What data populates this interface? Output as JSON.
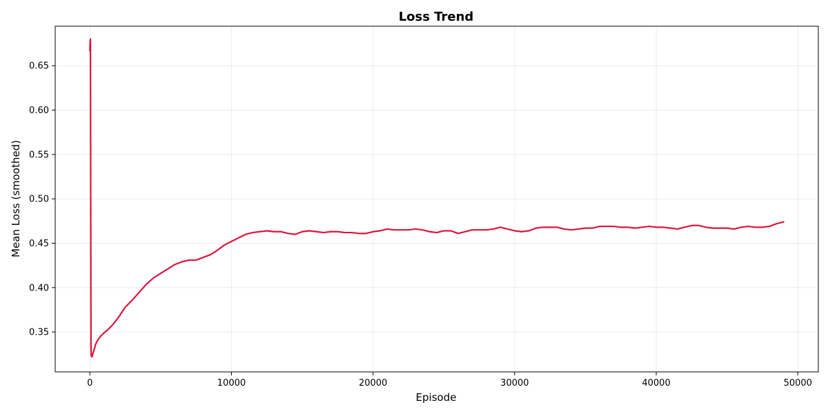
{
  "chart_data": {
    "type": "line",
    "title": "Loss Trend",
    "xlabel": "Episode",
    "ylabel": "Mean Loss (smoothed)",
    "xlim": [
      -2450,
      51450
    ],
    "ylim": [
      0.305,
      0.6945
    ],
    "xticks": [
      0,
      10000,
      20000,
      30000,
      40000,
      50000
    ],
    "yticks": [
      0.35,
      0.4,
      0.45,
      0.5,
      0.55,
      0.6,
      0.65
    ],
    "grid": true,
    "legend": "none",
    "series": [
      {
        "color": "#dc143c",
        "x": [
          0,
          20,
          40,
          60,
          80,
          100,
          150,
          200,
          300,
          400,
          600,
          800,
          1000,
          1300,
          1600,
          2000,
          2500,
          3000,
          3500,
          4000,
          4500,
          5000,
          5500,
          6000,
          6500,
          7000,
          7500,
          8000,
          8500,
          9000,
          9500,
          10000,
          10500,
          11000,
          11500,
          12000,
          12500,
          13000,
          13500,
          14000,
          14500,
          15000,
          15500,
          16000,
          16500,
          17000,
          17500,
          18000,
          18500,
          19000,
          19500,
          20000,
          20500,
          21000,
          21500,
          22000,
          22500,
          23000,
          23500,
          24000,
          24500,
          25000,
          25500,
          26000,
          26500,
          27000,
          27500,
          28000,
          28500,
          29000,
          29500,
          30000,
          30500,
          31000,
          31500,
          32000,
          32500,
          33000,
          33500,
          34000,
          34500,
          35000,
          35500,
          36000,
          36500,
          37000,
          37500,
          38000,
          38500,
          39000,
          39500,
          40000,
          40500,
          41000,
          41500,
          42000,
          42500,
          43000,
          43500,
          44000,
          44500,
          45000,
          45500,
          46000,
          46500,
          47000,
          47500,
          48000,
          48500,
          49000
        ],
        "values": [
          0.667,
          0.678,
          0.68,
          0.5,
          0.33,
          0.323,
          0.322,
          0.325,
          0.33,
          0.336,
          0.342,
          0.346,
          0.349,
          0.353,
          0.358,
          0.366,
          0.378,
          0.386,
          0.395,
          0.404,
          0.411,
          0.416,
          0.421,
          0.426,
          0.429,
          0.431,
          0.431,
          0.434,
          0.437,
          0.442,
          0.448,
          0.452,
          0.456,
          0.46,
          0.462,
          0.463,
          0.464,
          0.463,
          0.463,
          0.461,
          0.46,
          0.463,
          0.464,
          0.463,
          0.462,
          0.463,
          0.463,
          0.462,
          0.462,
          0.461,
          0.461,
          0.463,
          0.464,
          0.466,
          0.465,
          0.465,
          0.465,
          0.466,
          0.465,
          0.463,
          0.462,
          0.464,
          0.464,
          0.461,
          0.463,
          0.465,
          0.465,
          0.465,
          0.466,
          0.468,
          0.466,
          0.464,
          0.463,
          0.464,
          0.467,
          0.468,
          0.468,
          0.468,
          0.466,
          0.465,
          0.466,
          0.467,
          0.467,
          0.469,
          0.469,
          0.469,
          0.468,
          0.468,
          0.467,
          0.468,
          0.469,
          0.468,
          0.468,
          0.467,
          0.466,
          0.468,
          0.47,
          0.47,
          0.468,
          0.467,
          0.467,
          0.467,
          0.466,
          0.468,
          0.469,
          0.468,
          0.468,
          0.469,
          0.472,
          0.474
        ]
      }
    ]
  }
}
